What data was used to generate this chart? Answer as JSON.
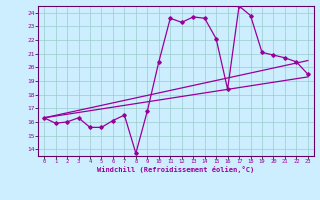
{
  "xlabel": "Windchill (Refroidissement éolien,°C)",
  "bg_color": "#cceeff",
  "line_color": "#990099",
  "grid_color": "#99cccc",
  "spine_color": "#660066",
  "xlim": [
    -0.5,
    23.5
  ],
  "ylim": [
    13.5,
    24.5
  ],
  "xticks": [
    0,
    1,
    2,
    3,
    4,
    5,
    6,
    7,
    8,
    9,
    10,
    11,
    12,
    13,
    14,
    15,
    16,
    17,
    18,
    19,
    20,
    21,
    22,
    23
  ],
  "yticks": [
    14,
    15,
    16,
    17,
    18,
    19,
    20,
    21,
    22,
    23,
    24
  ],
  "line1_x": [
    0,
    1,
    2,
    3,
    4,
    5,
    6,
    7,
    8,
    9,
    10,
    11,
    12,
    13,
    14,
    15,
    16,
    17,
    18,
    19,
    20,
    21,
    22,
    23
  ],
  "line1_y": [
    16.3,
    15.9,
    16.0,
    16.3,
    15.6,
    15.6,
    16.1,
    16.5,
    13.7,
    16.8,
    20.4,
    23.6,
    23.3,
    23.7,
    23.6,
    22.1,
    18.4,
    24.5,
    23.8,
    21.1,
    20.9,
    20.7,
    20.4,
    19.5
  ],
  "line2_x": [
    0,
    23
  ],
  "line2_y": [
    16.3,
    19.3
  ],
  "line3_x": [
    0,
    23
  ],
  "line3_y": [
    16.3,
    20.5
  ]
}
